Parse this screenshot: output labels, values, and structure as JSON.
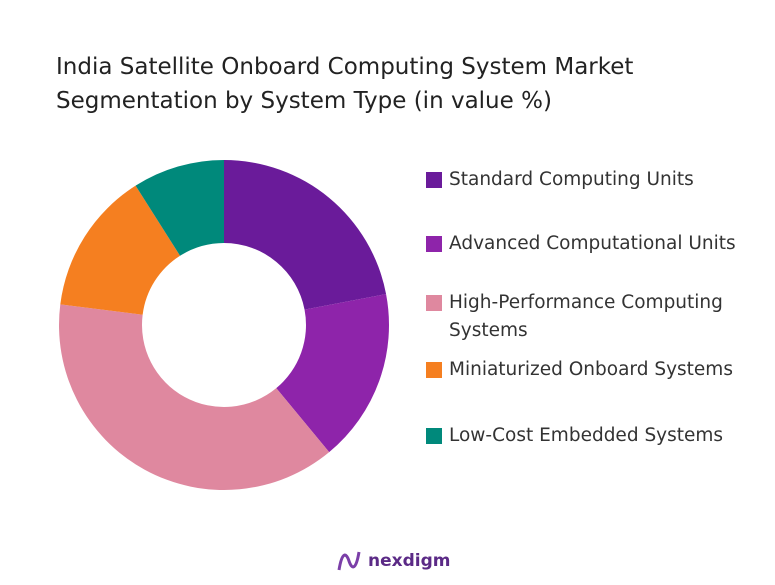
{
  "chart_data": {
    "type": "donut",
    "title": "India Satellite Onboard Computing System Market Segmentation by System Type (in value %)",
    "categories": [
      "Standard Computing Units",
      "Advanced Computational Units",
      "High-Performance Computing Systems",
      "Miniaturized Onboard Systems",
      "Low-Cost Embedded Systems"
    ],
    "values": [
      22,
      17,
      38,
      14,
      9
    ],
    "colors": [
      "#6a1b9a",
      "#8e24aa",
      "#df889f",
      "#f57f20",
      "#00897b"
    ]
  },
  "brand": "nexdigm"
}
